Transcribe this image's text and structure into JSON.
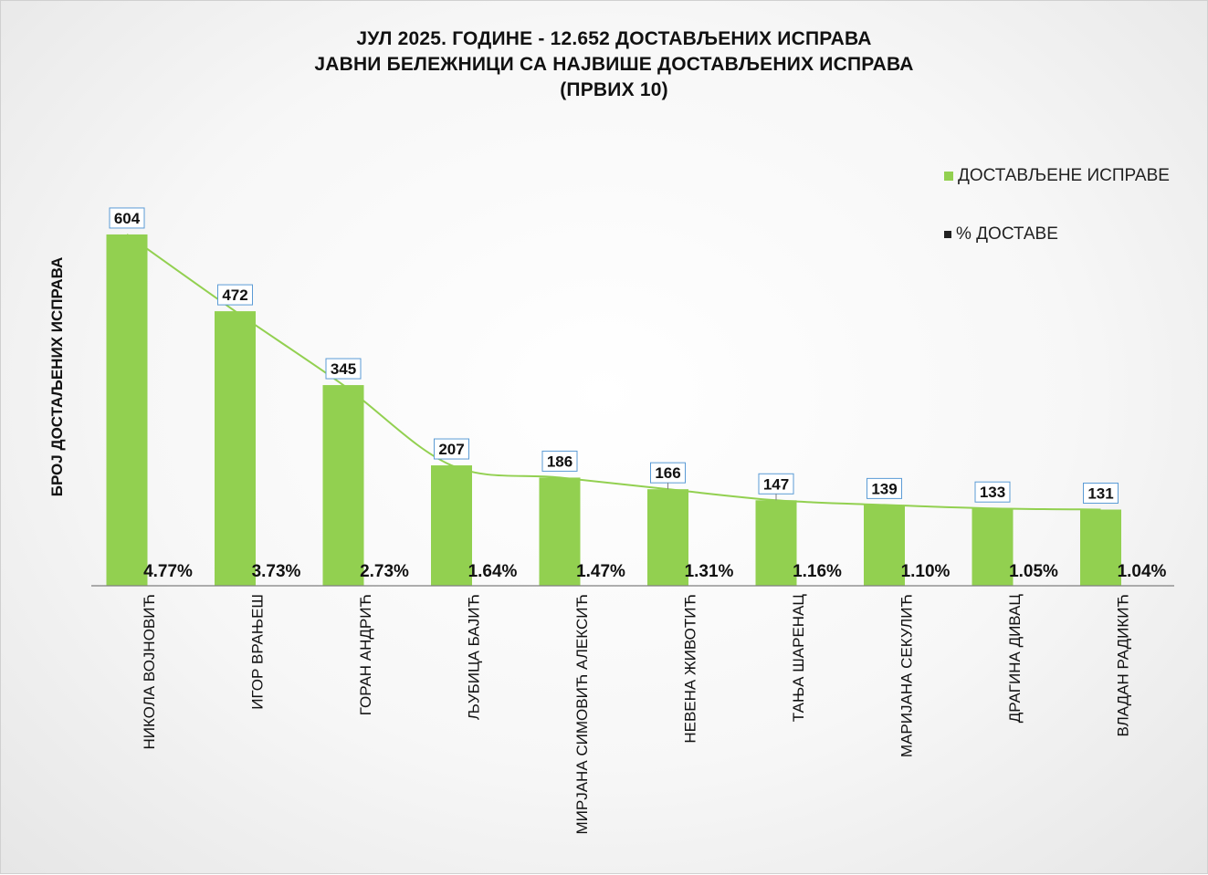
{
  "title": {
    "line1": "ЈУЛ 2025. ГОДИНЕ - 12.652  ДОСТАВЉЕНИХ  ИСПРАВА",
    "line2": "ЈАВНИ БЕЛЕЖНИЦИ СА НАЈВИШЕ ДОСТАВЉЕНИХ  ИСПРАВА",
    "line3": "(ПРВИХ 10)"
  },
  "legend": {
    "docs_label": "ДОСТАВЉЕНЕ  ИСПРАВЕ",
    "pct_label": "% ДОСТАВЕ"
  },
  "colors": {
    "bar": "#92d050",
    "trendline": "#92d050",
    "pct_marker": "#222222",
    "label_border": "#5b9bd5"
  },
  "chart_data": {
    "type": "bar",
    "title": "ЈУЛ 2025. ГОДИНЕ - 12.652  ДОСТАВЉЕНИХ  ИСПРАВА / ЈАВНИ БЕЛЕЖНИЦИ СА НАЈВИШЕ ДОСТАВЉЕНИХ  ИСПРАВА (ПРВИХ 10)",
    "ylabel": "БРОЈ ДОСТАЉЕНИХ ИСПРАВА",
    "xlabel": "",
    "categories": [
      "НИКОЛА ВОЈНОВИЋ",
      "ИГОР ВРАЊЕШ",
      "ГОРАН АНДРИЋ",
      "ЉУБИЦА БАЈИЋ",
      "МИРЈАНА СИМОВИЋ АЛЕКСИЋ",
      "НЕВЕНА ЖИВОТИЋ",
      "ТАЊА ШАРЕНАЦ",
      "МАРИЈАНА СЕКУЛИЋ",
      "ДРАГИНА ДИВАЦ",
      "ВЛАДАН РАДИКИЋ"
    ],
    "series": [
      {
        "name": "ДОСТАВЉЕНЕ  ИСПРАВЕ",
        "values": [
          604,
          472,
          345,
          207,
          186,
          166,
          147,
          139,
          133,
          131
        ],
        "labels": [
          "604",
          "472",
          "345",
          "207",
          "186",
          "166",
          "147",
          "139",
          "133",
          "131"
        ]
      },
      {
        "name": "% ДОСТАВЕ",
        "values": [
          4.77,
          3.73,
          2.73,
          1.64,
          1.47,
          1.31,
          1.16,
          1.1,
          1.05,
          1.04
        ],
        "labels": [
          "4.77%",
          "3.73%",
          "2.73%",
          "1.64%",
          "1.47%",
          "1.31%",
          "1.16%",
          "1.10%",
          "1.05%",
          "1.04%"
        ]
      }
    ],
    "ylim": [
      0,
      640
    ],
    "grid": false,
    "legend_position": "top-right",
    "trendline": "smoothed line through bar tops"
  }
}
